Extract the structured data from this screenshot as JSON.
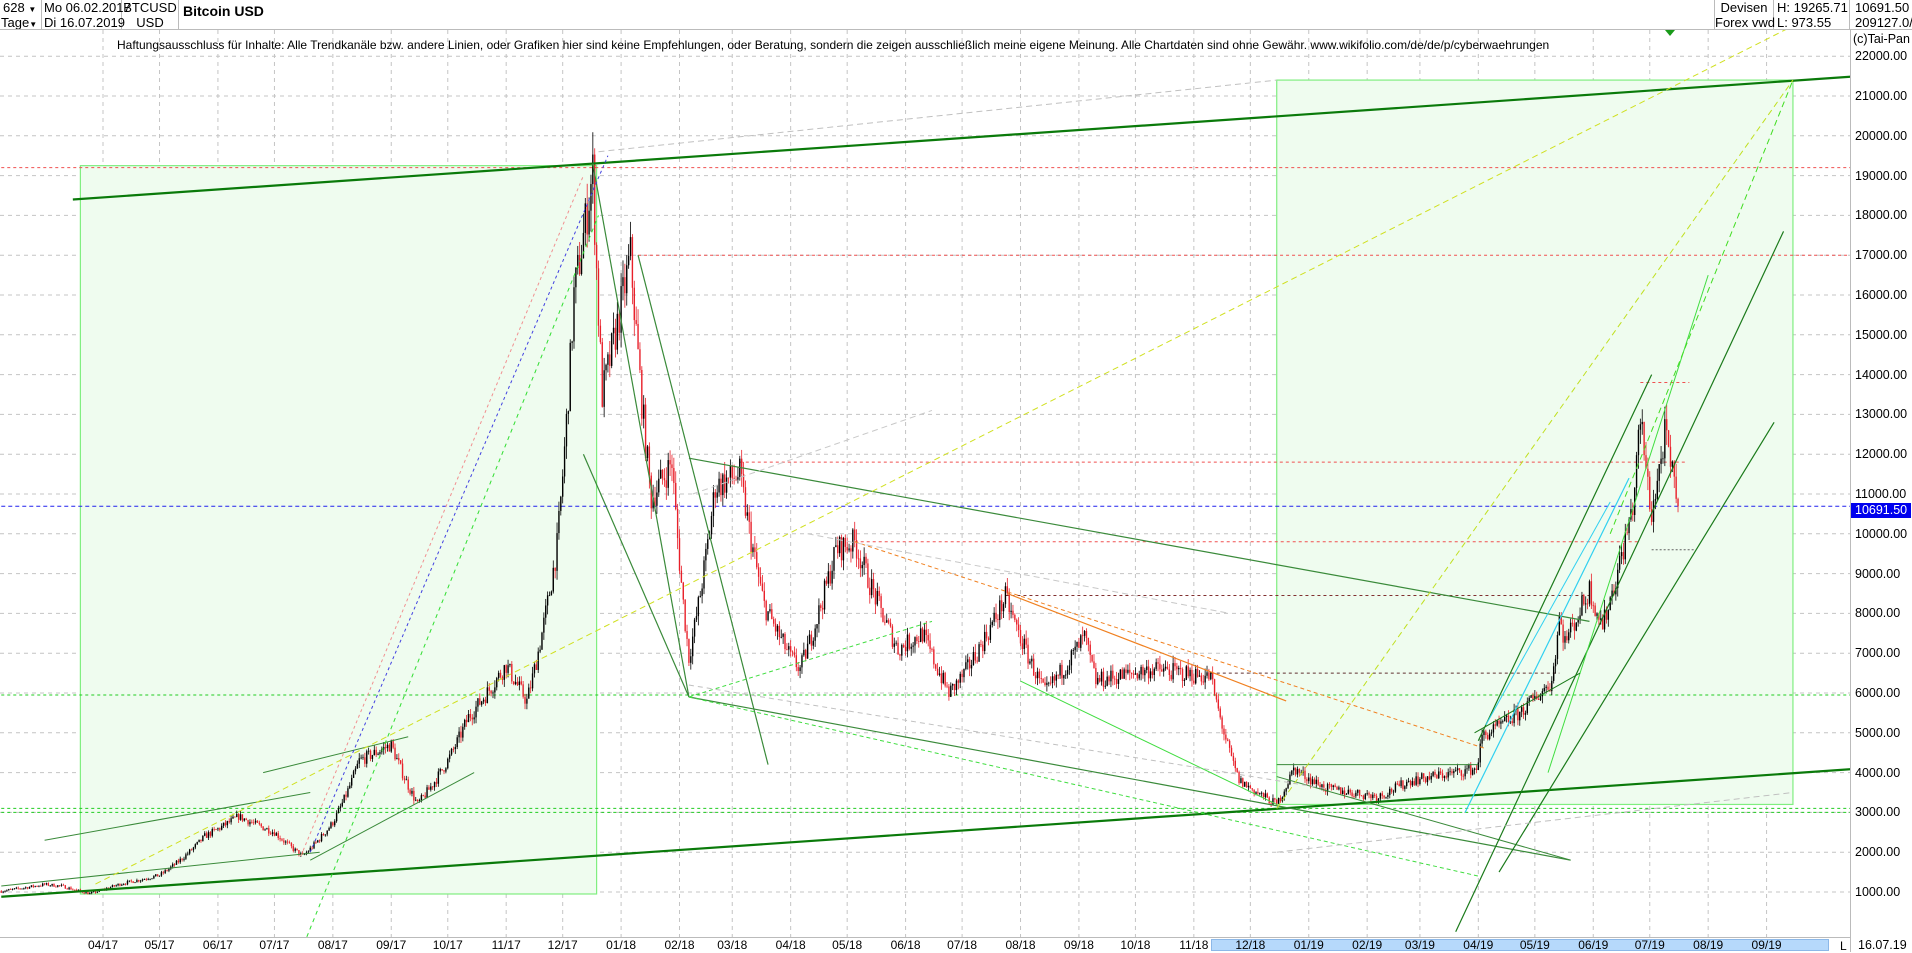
{
  "header": {
    "bar_count": "628",
    "period": "Tage",
    "date_from": "Mo 06.02.2017",
    "date_to": "Di 16.07.2019",
    "symbol": "BTCUSD",
    "currency": "USD",
    "title": "Bitcoin USD",
    "source_line1": "Devisen",
    "source_line2": "Forex vwd",
    "high": "H: 19265.71",
    "low": "L: 973.55",
    "last": "10691.50",
    "volume": "209127.0/"
  },
  "disclaimer": "Haftungsausschluss für Inhalte: Alle Trendkanäle bzw. andere Linien, oder Grafiken hier sind keine Empfehlungen, oder Beratung, sondern die zeigen ausschließlich meine eigene Meinung. Alle Chartdaten sind ohne Gewähr.  www.wikifolio.com/de/de/p/cyberwaehrungen",
  "copyright": "(c)Tai-Pan",
  "last_date": "16.07.19",
  "range_marker": "L",
  "current_price_label": "10691.50",
  "colors": {
    "up": "#000000",
    "down": "#e8202a",
    "current": "#0000ee",
    "channel": "#0a7a0a",
    "box_fill": "#effcef",
    "box_border": "#80ee80"
  },
  "chart_data": {
    "type": "candlestick",
    "title": "Bitcoin USD",
    "ylim": [
      0,
      22500
    ],
    "y_ticks": [
      "22000.00",
      "21000.00",
      "20000.00",
      "19000.00",
      "18000.00",
      "17000.00",
      "16000.00",
      "15000.00",
      "14000.00",
      "13000.00",
      "12000.00",
      "11000.00",
      "10000.00",
      "9000.00",
      "8000.00",
      "7000.00",
      "6000.00",
      "5000.00",
      "4000.00",
      "3000.00",
      "2000.00",
      "1000.00"
    ],
    "x_ticks": [
      {
        "label": "04/17",
        "date": "2017-04-01"
      },
      {
        "label": "05/17",
        "date": "2017-05-01"
      },
      {
        "label": "06/17",
        "date": "2017-06-01"
      },
      {
        "label": "07/17",
        "date": "2017-07-01"
      },
      {
        "label": "08/17",
        "date": "2017-08-01"
      },
      {
        "label": "09/17",
        "date": "2017-09-01"
      },
      {
        "label": "10/17",
        "date": "2017-10-01"
      },
      {
        "label": "11/17",
        "date": "2017-11-01"
      },
      {
        "label": "12/17",
        "date": "2017-12-01"
      },
      {
        "label": "01/18",
        "date": "2018-01-01"
      },
      {
        "label": "02/18",
        "date": "2018-02-01"
      },
      {
        "label": "03/18",
        "date": "2018-03-01"
      },
      {
        "label": "04/18",
        "date": "2018-04-01"
      },
      {
        "label": "05/18",
        "date": "2018-05-01"
      },
      {
        "label": "06/18",
        "date": "2018-06-01"
      },
      {
        "label": "07/18",
        "date": "2018-07-01"
      },
      {
        "label": "08/18",
        "date": "2018-08-01"
      },
      {
        "label": "09/18",
        "date": "2018-09-01"
      },
      {
        "label": "10/18",
        "date": "2018-10-01"
      },
      {
        "label": "11/18",
        "date": "2018-11-01"
      },
      {
        "label": "12/18",
        "date": "2018-12-01"
      },
      {
        "label": "01/19",
        "date": "2019-01-01"
      },
      {
        "label": "02/19",
        "date": "2019-02-01"
      },
      {
        "label": "03/19",
        "date": "2019-03-01"
      },
      {
        "label": "04/19",
        "date": "2019-04-01"
      },
      {
        "label": "05/19",
        "date": "2019-05-01"
      },
      {
        "label": "06/19",
        "date": "2019-06-01"
      },
      {
        "label": "07/19",
        "date": "2019-07-01"
      },
      {
        "label": "08/19",
        "date": "2019-08-01"
      },
      {
        "label": "09/19",
        "date": "2019-09-01"
      }
    ],
    "close_anchors": [
      [
        "2017-02-06",
        1020
      ],
      [
        "2017-03-01",
        1190
      ],
      [
        "2017-03-10",
        1150
      ],
      [
        "2017-03-25",
        960
      ],
      [
        "2017-04-10",
        1200
      ],
      [
        "2017-05-01",
        1420
      ],
      [
        "2017-05-25",
        2400
      ],
      [
        "2017-06-12",
        2900
      ],
      [
        "2017-07-01",
        2500
      ],
      [
        "2017-07-16",
        1900
      ],
      [
        "2017-08-01",
        2750
      ],
      [
        "2017-08-15",
        4300
      ],
      [
        "2017-09-01",
        4700
      ],
      [
        "2017-09-15",
        3200
      ],
      [
        "2017-10-01",
        4300
      ],
      [
        "2017-10-12",
        5400
      ],
      [
        "2017-11-01",
        6700
      ],
      [
        "2017-11-12",
        5800
      ],
      [
        "2017-11-28",
        9700
      ],
      [
        "2017-12-07",
        16000
      ],
      [
        "2017-12-17",
        19100
      ],
      [
        "2017-12-22",
        13500
      ],
      [
        "2018-01-06",
        17000
      ],
      [
        "2018-01-17",
        10900
      ],
      [
        "2018-01-28",
        11800
      ],
      [
        "2018-02-06",
        6900
      ],
      [
        "2018-02-20",
        11200
      ],
      [
        "2018-03-05",
        11500
      ],
      [
        "2018-03-18",
        8200
      ],
      [
        "2018-04-01",
        6900
      ],
      [
        "2018-04-06",
        6600
      ],
      [
        "2018-04-25",
        9600
      ],
      [
        "2018-05-05",
        9800
      ],
      [
        "2018-05-28",
        7100
      ],
      [
        "2018-06-10",
        7500
      ],
      [
        "2018-06-24",
        6000
      ],
      [
        "2018-07-01",
        6400
      ],
      [
        "2018-07-24",
        8400
      ],
      [
        "2018-08-14",
        6000
      ],
      [
        "2018-09-04",
        7400
      ],
      [
        "2018-09-10",
        6300
      ],
      [
        "2018-10-10",
        6600
      ],
      [
        "2018-11-10",
        6400
      ],
      [
        "2018-11-20",
        4500
      ],
      [
        "2018-11-25",
        3800
      ],
      [
        "2018-12-15",
        3200
      ],
      [
        "2018-12-24",
        4100
      ],
      [
        "2019-01-10",
        3600
      ],
      [
        "2019-02-07",
        3400
      ],
      [
        "2019-02-24",
        3800
      ],
      [
        "2019-03-31",
        4100
      ],
      [
        "2019-04-03",
        4900
      ],
      [
        "2019-04-23",
        5500
      ],
      [
        "2019-05-10",
        6300
      ],
      [
        "2019-05-14",
        7900
      ],
      [
        "2019-05-17",
        7300
      ],
      [
        "2019-05-30",
        8600
      ],
      [
        "2019-06-06",
        7700
      ],
      [
        "2019-06-22",
        10700
      ],
      [
        "2019-06-26",
        12900
      ],
      [
        "2019-07-02",
        10500
      ],
      [
        "2019-07-09",
        12500
      ],
      [
        "2019-07-16",
        10691.5
      ]
    ],
    "boxes": [
      {
        "from": [
          "2017-03-20",
          950
        ],
        "to": [
          "2017-12-19",
          19250
        ]
      },
      {
        "from": [
          "2018-12-15",
          3200
        ],
        "to": [
          "2019-09-15",
          21400
        ]
      }
    ],
    "hlines": [
      {
        "price": 19200,
        "from": "2017-02-06",
        "to": "2019-11-20",
        "color": "#f05050",
        "dash": "3,3"
      },
      {
        "price": 17000,
        "from": "2018-01-10",
        "to": "2019-11-20",
        "color": "#f05050",
        "dash": "3,3"
      },
      {
        "price": 13800,
        "from": "2019-06-26",
        "to": "2019-07-22",
        "color": "#f05050",
        "dash": "3,3"
      },
      {
        "price": 11800,
        "from": "2018-03-05",
        "to": "2019-07-20",
        "color": "#f05050",
        "dash": "3,3"
      },
      {
        "price": 10691.5,
        "from": "2017-02-06",
        "to": "2019-11-20",
        "color": "#2020ee",
        "dash": "4,3"
      },
      {
        "price": 9800,
        "from": "2018-05-05",
        "to": "2019-06-25",
        "color": "#f05050",
        "dash": "3,3"
      },
      {
        "price": 9600,
        "from": "2019-07-02",
        "to": "2019-07-25",
        "color": "#606060",
        "dash": "2,2"
      },
      {
        "price": 8450,
        "from": "2018-07-24",
        "to": "2019-05-30",
        "color": "#803030",
        "dash": "3,3"
      },
      {
        "price": 6500,
        "from": "2018-11-10",
        "to": "2019-05-14",
        "color": "#603030",
        "dash": "3,3"
      },
      {
        "price": 5950,
        "from": "2017-02-06",
        "to": "2019-11-20",
        "color": "#20cc20",
        "dash": "3,3"
      },
      {
        "price": 3100,
        "from": "2017-02-06",
        "to": "2019-11-20",
        "color": "#20cc20",
        "dash": "3,3"
      },
      {
        "price": 3000,
        "from": "2017-02-06",
        "to": "2019-11-20",
        "color": "#20cc20",
        "dash": "3,3"
      }
    ],
    "trendlines": [
      {
        "from": [
          "2017-03-16",
          18400
        ],
        "to": [
          "2019-11-20",
          21600
        ],
        "color": "#0a7a0a",
        "width": 2.2
      },
      {
        "from": [
          "2017-02-06",
          880
        ],
        "to": [
          "2019-11-20",
          4200
        ],
        "color": "#0a7a0a",
        "width": 2.2
      },
      {
        "from": [
          "2017-12-17",
          19300
        ],
        "to": [
          "2018-02-06",
          5900
        ],
        "color": "#3a8a3a",
        "width": 1.2
      },
      {
        "from": [
          "2018-01-10",
          17000
        ],
        "to": [
          "2018-03-20",
          4200
        ],
        "color": "#3a8a3a",
        "width": 1.2
      },
      {
        "from": [
          "2017-12-12",
          12000
        ],
        "to": [
          "2018-02-06",
          5900
        ],
        "color": "#3a8a3a",
        "width": 1.2
      },
      {
        "from": [
          "2018-02-06",
          11900
        ],
        "to": [
          "2019-05-30",
          7800
        ],
        "color": "#3a8a3a",
        "width": 1.2
      },
      {
        "from": [
          "2018-02-06",
          5900
        ],
        "to": [
          "2019-05-20",
          1800
        ],
        "color": "#3a8a3a",
        "width": 1.2
      },
      {
        "from": [
          "2017-03-01",
          2300
        ],
        "to": [
          "2017-07-20",
          3500
        ],
        "color": "#3a8a3a",
        "width": 1
      },
      {
        "from": [
          "2017-06-25",
          4000
        ],
        "to": [
          "2017-09-10",
          4900
        ],
        "color": "#3a8a3a",
        "width": 1
      },
      {
        "from": [
          "2017-07-20",
          1800
        ],
        "to": [
          "2017-10-15",
          4000
        ],
        "color": "#3a8a3a",
        "width": 1
      },
      {
        "from": [
          "2017-02-06",
          1150
        ],
        "to": [
          "2017-07-25",
          2000
        ],
        "color": "#3a8a3a",
        "width": 1
      },
      {
        "from": [
          "2018-12-15",
          4200
        ],
        "to": [
          "2019-04-01",
          4200
        ],
        "color": "#3a8a3a",
        "width": 1
      },
      {
        "from": [
          "2018-12-15",
          3900
        ],
        "to": [
          "2019-05-20",
          1800
        ],
        "color": "#3a8a3a",
        "width": 1
      },
      {
        "from": [
          "2019-03-20",
          0
        ],
        "to": [
          "2019-09-10",
          17600
        ],
        "color": "#1a7a1a",
        "width": 1.2
      },
      {
        "from": [
          "2019-04-12",
          1500
        ],
        "to": [
          "2019-09-05",
          12800
        ],
        "color": "#1a7a1a",
        "width": 1.2
      },
      {
        "from": [
          "2019-04-01",
          4800
        ],
        "to": [
          "2019-07-02",
          14000
        ],
        "color": "#1a7a1a",
        "width": 1.2
      },
      {
        "from": [
          "2019-05-08",
          4000
        ],
        "to": [
          "2019-08-01",
          16500
        ],
        "color": "#40dd40",
        "width": 1
      },
      {
        "from": [
          "2019-03-30",
          5000
        ],
        "to": [
          "2019-05-25",
          6500
        ],
        "color": "#1a7a1a",
        "width": 1
      },
      {
        "from": [
          "2019-03-25",
          3000
        ],
        "to": [
          "2019-06-20",
          11400
        ],
        "color": "#30d0f0",
        "width": 1.2
      },
      {
        "from": [
          "2019-04-05",
          5200
        ],
        "to": [
          "2019-06-10",
          10800
        ],
        "color": "#30d0f0",
        "width": 1
      },
      {
        "from": [
          "2018-08-01",
          6300
        ],
        "to": [
          "2018-12-15",
          3200
        ],
        "color": "#40dd40",
        "width": 1
      },
      {
        "from": [
          "2018-07-25",
          8500
        ],
        "to": [
          "2018-12-20",
          5800
        ],
        "color": "#f08020",
        "width": 1.2
      },
      {
        "from": [
          "2018-05-05",
          9800
        ],
        "to": [
          "2019-04-05",
          4600
        ],
        "color": "#f08020",
        "width": 1,
        "dash": "4,3"
      },
      {
        "from": [
          "2017-03-28",
          1200
        ],
        "to": [
          "2019-09-25",
          23000
        ],
        "color": "#d0e020",
        "width": 1,
        "dash": "6,4"
      },
      {
        "from": [
          "2018-12-15",
          3100
        ],
        "to": [
          "2019-09-15",
          21400
        ],
        "color": "#c0e020",
        "width": 1,
        "dash": "6,4"
      },
      {
        "from": [
          "2019-06-10",
          10000
        ],
        "to": [
          "2019-09-15",
          21400
        ],
        "color": "#40dd20",
        "width": 1,
        "dash": "6,4"
      },
      {
        "from": [
          "2017-07-15",
          -500
        ],
        "to": [
          "2017-12-20",
          18000
        ],
        "color": "#30dd30",
        "width": 1,
        "dash": "4,4"
      },
      {
        "from": [
          "2017-07-15",
          1900
        ],
        "to": [
          "2017-12-12",
          19000
        ],
        "color": "#f09090",
        "width": 1,
        "dash": "3,3"
      },
      {
        "from": [
          "2017-07-20",
          2000
        ],
        "to": [
          "2017-12-25",
          19500
        ],
        "color": "#4040e0",
        "width": 1,
        "dash": "3,3"
      },
      {
        "from": [
          "2018-02-06",
          5900
        ],
        "to": [
          "2019-04-01",
          1400
        ],
        "color": "#40dd40",
        "width": 1,
        "dash": "4,3"
      },
      {
        "from": [
          "2018-02-06",
          5900
        ],
        "to": [
          "2018-06-15",
          7800
        ],
        "color": "#40dd40",
        "width": 1,
        "dash": "4,3"
      },
      {
        "from": [
          "2018-02-06",
          6200
        ],
        "to": [
          "2019-01-10",
          3600
        ],
        "color": "#c0c0c0",
        "width": 1,
        "dash": "5,4"
      },
      {
        "from": [
          "2017-12-20",
          19600
        ],
        "to": [
          "2018-12-15",
          21400
        ],
        "color": "#c0c0c0",
        "width": 1,
        "dash": "6,4"
      },
      {
        "from": [
          "2018-02-08",
          11000
        ],
        "to": [
          "2018-06-15",
          13100
        ],
        "color": "#c8c8c8",
        "width": 1,
        "dash": "6,4"
      },
      {
        "from": [
          "2018-04-10",
          10000
        ],
        "to": [
          "2018-11-20",
          8000
        ],
        "color": "#c8c8c8",
        "width": 1,
        "dash": "6,4"
      },
      {
        "from": [
          "2018-12-15",
          2000
        ],
        "to": [
          "2019-09-15",
          3500
        ],
        "color": "#c0c0c0",
        "width": 1,
        "dash": "6,4"
      }
    ]
  }
}
